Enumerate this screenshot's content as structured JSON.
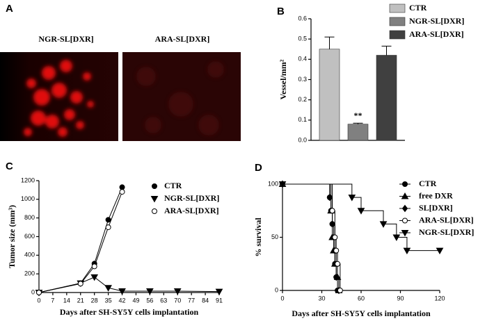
{
  "panel_a": {
    "label": "A",
    "images": [
      {
        "label": "NGR-SL[DXR]"
      },
      {
        "label": "ARA-SL[DXR]"
      }
    ]
  },
  "chart_data": [
    {
      "type": "bar",
      "panel_label": "B",
      "ylabel": "Vessel/mm²",
      "categories": [
        "CTR",
        "NGR-SL[DXR]",
        "ARA-SL[DXR]"
      ],
      "values": [
        0.45,
        0.08,
        0.42
      ],
      "errors": [
        0.06,
        0.005,
        0.045
      ],
      "colors": [
        "#c0c0c0",
        "#808080",
        "#404040"
      ],
      "annotation": "**",
      "ylim": [
        0,
        0.6
      ],
      "yticks": [
        {
          "value": 0,
          "label": "0.0"
        },
        0.1,
        0.2,
        0.3,
        0.4,
        0.5,
        0.6
      ],
      "legend": "top-right"
    },
    {
      "type": "line",
      "panel_label": "C",
      "ylabel": "Tumor size (mm³)",
      "xlabel": "Days after SH-SY5Y cells implantation",
      "x": [
        0,
        21,
        28,
        35,
        42,
        56,
        70,
        91
      ],
      "series": [
        {
          "name": "CTR",
          "color": "#000000",
          "marker": "circle",
          "values": [
            0,
            100,
            310,
            780,
            1130,
            null,
            null,
            null
          ]
        },
        {
          "name": "NGR-SL[DXR]",
          "color": "#000000",
          "marker": "triangle-down",
          "values": [
            0,
            100,
            165,
            50,
            15,
            15,
            15,
            10
          ]
        },
        {
          "name": "ARA-SL[DXR]",
          "color": "#000000",
          "marker": "circle-open",
          "values": [
            0,
            95,
            280,
            700,
            1080,
            null,
            null,
            null
          ]
        }
      ],
      "xlim": [
        0,
        91
      ],
      "xticks": [
        0,
        7,
        14,
        21,
        28,
        35,
        42,
        49,
        56,
        63,
        70,
        77,
        84,
        91
      ],
      "ylim": [
        0,
        1200
      ],
      "yticks": [
        0,
        200,
        400,
        600,
        800,
        1000,
        1200
      ],
      "legend": "top-right"
    },
    {
      "type": "step",
      "panel_label": "D",
      "ylabel": "% survival",
      "xlabel": "Days after SH-SY5Y cells implantation",
      "series": [
        {
          "name": "CTR",
          "color": "#000000",
          "marker": "circle",
          "x": [
            0,
            36,
            37,
            38,
            39,
            40,
            41,
            42
          ],
          "values": [
            100,
            87.5,
            75,
            62.5,
            50,
            25,
            12.5,
            0
          ]
        },
        {
          "name": "free DXR",
          "color": "#000000",
          "marker": "triangle-up",
          "x": [
            0,
            37,
            38,
            39,
            40,
            42,
            43
          ],
          "values": [
            100,
            75,
            50,
            37.5,
            25,
            12.5,
            0
          ]
        },
        {
          "name": "SL[DXR]",
          "color": "#000000",
          "marker": "diamond",
          "x": [
            0,
            36,
            38,
            40,
            41,
            43
          ],
          "values": [
            100,
            87.5,
            62.5,
            37.5,
            12.5,
            0
          ]
        },
        {
          "name": "ARA-SL[DXR]",
          "color": "#000000",
          "marker": "circle-open",
          "x": [
            0,
            38,
            40,
            41,
            42,
            44
          ],
          "values": [
            100,
            75,
            50,
            37.5,
            25,
            0
          ]
        },
        {
          "name": "NGR-SL[DXR]",
          "color": "#000000",
          "marker": "triangle-down",
          "x": [
            0,
            53,
            60,
            77,
            87,
            95,
            120
          ],
          "values": [
            100,
            87.5,
            75,
            62.5,
            50,
            37.5,
            37.5
          ]
        }
      ],
      "xlim": [
        0,
        120
      ],
      "xticks": [
        0,
        30,
        60,
        90,
        120
      ],
      "ylim": [
        0,
        100
      ],
      "yticks": [
        0,
        50,
        100
      ],
      "legend": "top-right"
    }
  ]
}
